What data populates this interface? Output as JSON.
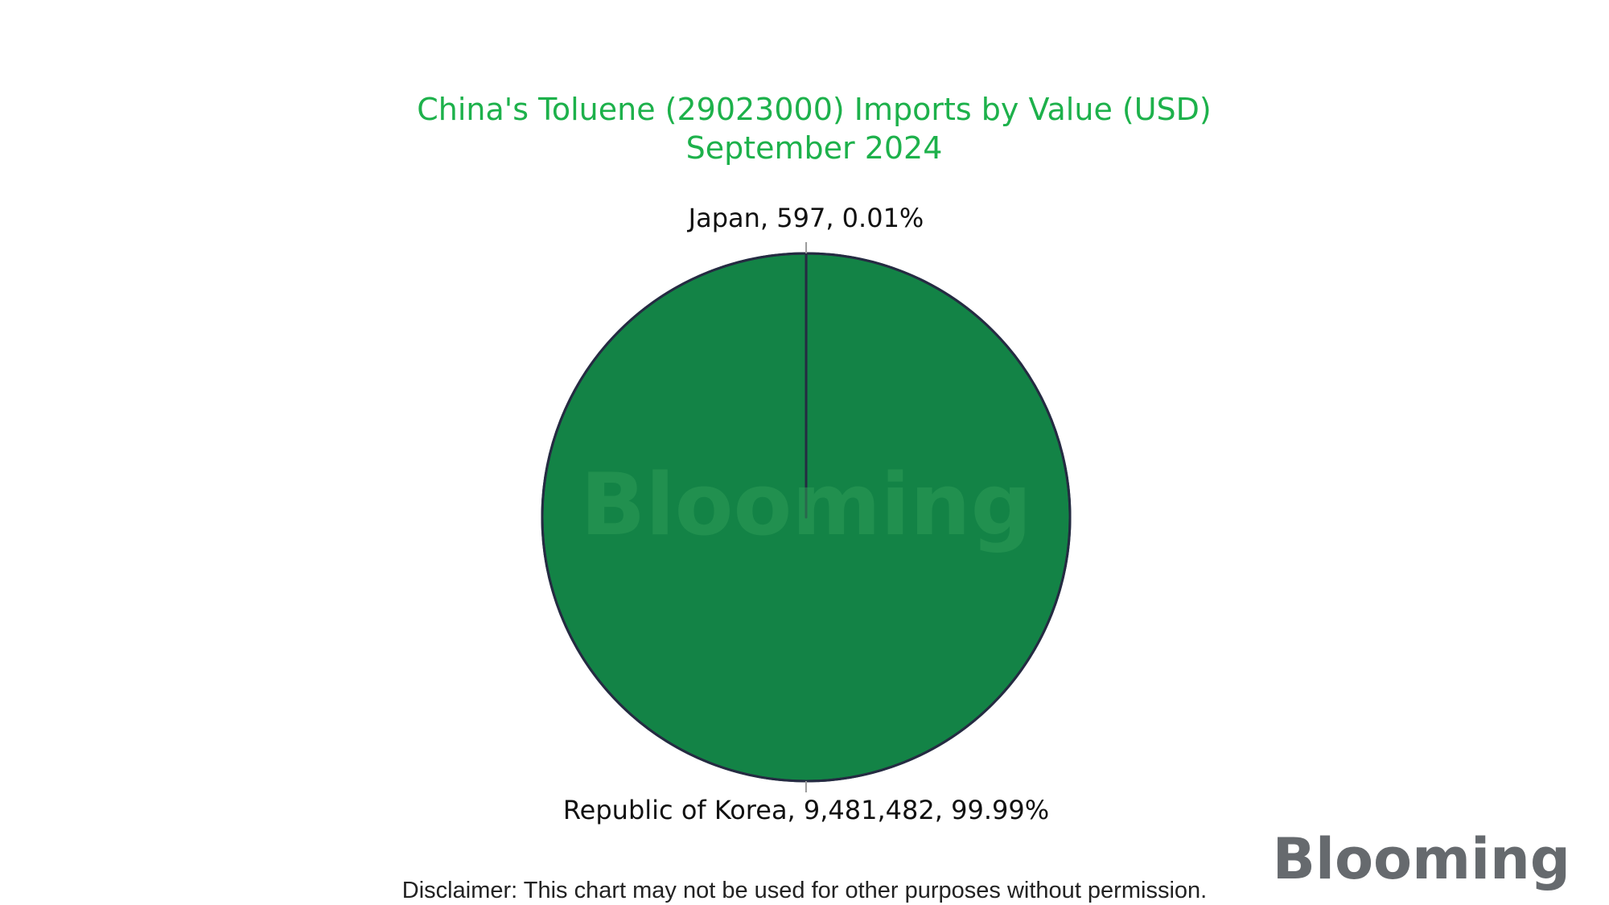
{
  "chart_data": {
    "type": "pie",
    "title": "China's Toluene (29023000) Imports by Value (USD)",
    "subtitle": "September 2024",
    "slices": [
      {
        "label": "Japan",
        "value": 597,
        "value_text": "597",
        "percent_text": "0.01%",
        "color": "#138346"
      },
      {
        "label": "Republic of Korea",
        "value": 9481482,
        "value_text": "9,481,482",
        "percent_text": "99.99%",
        "color": "#138346"
      }
    ],
    "start_angle_deg": 0,
    "legend": "none"
  },
  "colors": {
    "title": "#1db14b",
    "slice_fill": "#138346",
    "slice_border": "#252b42",
    "label_text": "#111111",
    "watermark": "#2e9a58",
    "logo_text": "#666a6e",
    "logo_eye": "#24c04c"
  },
  "watermark": {
    "text": "Blooming"
  },
  "logo": {
    "text": "Blooming"
  },
  "disclaimer": "Disclaimer: This chart may not be used for other purposes without permission."
}
